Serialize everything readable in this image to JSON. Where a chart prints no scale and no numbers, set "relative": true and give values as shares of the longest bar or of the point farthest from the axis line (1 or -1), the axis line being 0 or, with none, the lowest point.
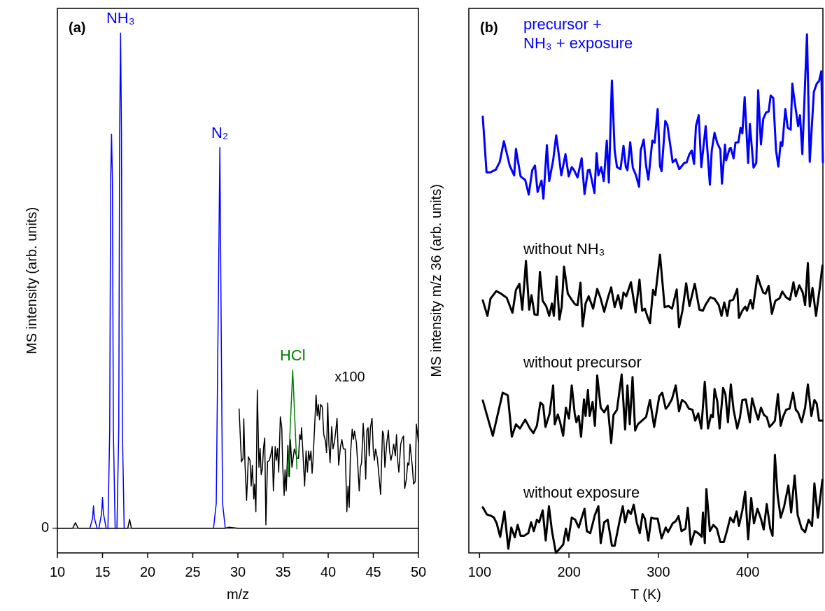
{
  "chart_data": [
    {
      "type": "line",
      "xlabel": "m/z",
      "ylabel": "MS intensity (arb. units)",
      "relative": true,
      "xlim": [
        10,
        50
      ],
      "xticks": [
        10,
        15,
        20,
        25,
        30,
        35,
        40,
        45,
        50
      ],
      "ref_lines": [
        {
          "axis": "y",
          "value": 0,
          "label": "0",
          "color": "#000000"
        }
      ],
      "annotations": [
        "(a)",
        "x100"
      ],
      "series": [
        {
          "color": "#000000",
          "x": [
            10,
            11.7,
            12,
            12.3,
            13.6,
            17.4,
            17.8,
            18,
            18.2,
            18.5,
            27.3,
            28.6,
            29,
            30,
            50
          ],
          "values": [
            0,
            0,
            0.011,
            0,
            0,
            0,
            0,
            0.018,
            0,
            0,
            0,
            0,
            0.002,
            0,
            0
          ]
        },
        {
          "name": "NH₃",
          "color": "#0000ff",
          "x": [
            13.6,
            13.9,
            14,
            14.1,
            14.4,
            14.6,
            14.9,
            15,
            15.1,
            15.4,
            15.6,
            15.8,
            15.9,
            16,
            16.1,
            16.2,
            16.4,
            16.6,
            16.8,
            16.9,
            17,
            17.1,
            17.2,
            17.4
          ],
          "values": [
            0,
            0.02,
            0.045,
            0.02,
            0,
            0,
            0.03,
            0.062,
            0.03,
            0,
            0,
            0.2,
            0.7,
            0.796,
            0.7,
            0.2,
            0,
            0,
            0.2,
            0.8,
            1,
            0.8,
            0.2,
            0
          ]
        },
        {
          "name": "N₂",
          "color": "#0000ff",
          "x": [
            27.3,
            27.6,
            27.8,
            28,
            28.15,
            28.3,
            28.6
          ],
          "values": [
            0,
            0.05,
            0.4,
            0.769,
            0.4,
            0.05,
            0
          ]
        },
        {
          "color": "#000000",
          "x": [
            30.13,
            30.39,
            30.57,
            30.65,
            30.78,
            30.96,
            31.16,
            31.34,
            31.47,
            31.6,
            31.76,
            31.86,
            31.99,
            32.15,
            32.33,
            32.46,
            32.58,
            32.71,
            32.84,
            32.97,
            33.1,
            33.28,
            33.49,
            33.67,
            33.8,
            33.93,
            34.13,
            34.26,
            34.39,
            34.52,
            34.7,
            34.86,
            34.96,
            35.12,
            35.22,
            35.35,
            35.53,
            35.69,
            35.81,
            35.99,
            36.25,
            36.59,
            36.72,
            36.85,
            36.98,
            37.05,
            37.18,
            37.39,
            37.55,
            37.7,
            37.83,
            37.96,
            38.09,
            38.22,
            38.32,
            38.53,
            38.66,
            38.79,
            38.91,
            39.04,
            39.17,
            39.35,
            39.51,
            39.69,
            39.82,
            39.95,
            40.08,
            40.21,
            40.39,
            40.54,
            40.72,
            40.85,
            40.98,
            41.16,
            41.37,
            41.52,
            41.68,
            41.89,
            42.07,
            42.2,
            42.33,
            42.46,
            42.66,
            42.79,
            42.92,
            43.13,
            43.31,
            43.44,
            43.57,
            43.7,
            43.88,
            44.01,
            44.16,
            44.29,
            44.42,
            44.55,
            44.68,
            44.86,
            44.99,
            45.12,
            45.25,
            45.45,
            45.68,
            45.81,
            46.02,
            46.15,
            46.28,
            46.49,
            46.67,
            46.8,
            46.95,
            47.11,
            47.26,
            47.44,
            47.57,
            47.7,
            47.83,
            48.04,
            48.22,
            48.35,
            48.48,
            48.66,
            48.81,
            48.94,
            49.07,
            49.2,
            49.33,
            49.46,
            49.64,
            49.77,
            49.9,
            50
          ],
          "values": [
            0.241,
            0.134,
            0.141,
            0.221,
            0.132,
            0.056,
            0.144,
            0.137,
            0.085,
            0.127,
            0.059,
            0.089,
            0.033,
            0.279,
            0.123,
            0.161,
            0.108,
            0.12,
            0.163,
            0.182,
            0.007,
            0.134,
            0.137,
            0.151,
            0.165,
            0.075,
            0.165,
            0.137,
            0.161,
            0.113,
            0.225,
            0.203,
            0.127,
            0.066,
            0.118,
            0.075,
            0.167,
            0.104,
            0.179,
            0.123,
            0.16,
            0.141,
            0.141,
            0.189,
            0.179,
            0.203,
            0.16,
            0.085,
            0.156,
            0.113,
            0.156,
            0.137,
            0.156,
            0.111,
            0.137,
            0.217,
            0.269,
            0.227,
            0.25,
            0.219,
            0.25,
            0.245,
            0.189,
            0.177,
            0.153,
            0.253,
            0.17,
            0.132,
            0.205,
            0.16,
            0.177,
            0.198,
            0.222,
            0.127,
            0.165,
            0.179,
            0.16,
            0.16,
            0.033,
            0.085,
            0.042,
            0.146,
            0.2,
            0.179,
            0.196,
            0.172,
            0.118,
            0.075,
            0.123,
            0.132,
            0.212,
            0.17,
            0.099,
            0.198,
            0.203,
            0.146,
            0.203,
            0.222,
            0.16,
            0.137,
            0.16,
            0.141,
            0.094,
            0.068,
            0.196,
            0.189,
            0.123,
            0.172,
            0.198,
            0.156,
            0.137,
            0.151,
            0.17,
            0.146,
            0.189,
            0.137,
            0.113,
            0.17,
            0.182,
            0.186,
            0.08,
            0.099,
            0.132,
            0.127,
            0.17,
            0.146,
            0.123,
            0.089,
            0.094,
            0.21,
            0.189,
            0.174
          ]
        },
        {
          "name": "HCl",
          "color": "#008000",
          "x": [
            35.56,
            36.07,
            36.54
          ],
          "values": [
            0.104,
            0.319,
            0.12
          ]
        }
      ]
    },
    {
      "type": "line",
      "xlabel": "T (K)",
      "ylabel": "MS intensity m/z 36 (arb. units)",
      "relative": true,
      "xlim": [
        88,
        484
      ],
      "xticks": [
        100,
        200,
        300,
        400
      ],
      "annotations": [
        "(b)"
      ],
      "series": [
        {
          "name": "precursor + NH₃ + exposure",
          "color": "#0000ff",
          "x": [
            103.6,
            107.8,
            112.2,
            118.1,
            122.6,
            127.2,
            130.4,
            133.7,
            138.7,
            140.7,
            143.3,
            145.9,
            151.1,
            155,
            158.9,
            162,
            164.9,
            169.3,
            171.4,
            175.3,
            177.9,
            182.3,
            185.7,
            188.8,
            191.4,
            196.1,
            199.7,
            203.1,
            205.7,
            209.6,
            214.2,
            217.4,
            221.2,
            223.1,
            228.5,
            230.9,
            232.9,
            236.1,
            238.9,
            242.3,
            244.6,
            248,
            251.1,
            253.7,
            257.6,
            261,
            263.6,
            265.4,
            268.5,
            271.4,
            275,
            278.4,
            280.2,
            283.6,
            286.2,
            288.8,
            293.2,
            295.8,
            299.2,
            301.8,
            303.6,
            307.7,
            310.1,
            316,
            319.4,
            323.3,
            329,
            331.6,
            334.7,
            337.3,
            339.9,
            342,
            345.1,
            348,
            352.9,
            357.6,
            359.7,
            362.8,
            365.9,
            369.3,
            371.1,
            374.5,
            375.8,
            379.7,
            381,
            384.1,
            386.2,
            389.5,
            391.9,
            393.9,
            396.5,
            400.4,
            402.3,
            406.4,
            409.5,
            411.6,
            414.7,
            417.3,
            420.4,
            423.3,
            425.6,
            428.5,
            431.6,
            434.2,
            436.8,
            438.6,
            442,
            444.6,
            448,
            449.8,
            452.4,
            456.3,
            458.4,
            461,
            466.2,
            469.3,
            473.9,
            477.1,
            479.7,
            482.3,
            484
          ],
          "values": [
            0.841,
            0.734,
            0.734,
            0.739,
            0.754,
            0.794,
            0.771,
            0.747,
            0.728,
            0.779,
            0.752,
            0.726,
            0.719,
            0.691,
            0.738,
            0.747,
            0.696,
            0.718,
            0.683,
            0.786,
            0.717,
            0.757,
            0.805,
            0.766,
            0.728,
            0.769,
            0.726,
            0.744,
            0.738,
            0.724,
            0.761,
            0.692,
            0.738,
            0.739,
            0.694,
            0.771,
            0.728,
            0.744,
            0.717,
            0.795,
            0.714,
            0.911,
            0.776,
            0.744,
            0.74,
            0.785,
            0.744,
            0.738,
            0.792,
            0.743,
            0.728,
            0.706,
            0.776,
            0.797,
            0.747,
            0.72,
            0.795,
            0.791,
            0.856,
            0.746,
            0.736,
            0.833,
            0.825,
            0.753,
            0.759,
            0.74,
            0.752,
            0.753,
            0.769,
            0.776,
            0.75,
            0.823,
            0.844,
            0.744,
            0.823,
            0.71,
            0.776,
            0.81,
            0.79,
            0.778,
            0.712,
            0.787,
            0.757,
            0.78,
            0.781,
            0.761,
            0.791,
            0.792,
            0.82,
            0.809,
            0.879,
            0.752,
            0.827,
            0.743,
            0.752,
            0.892,
            0.788,
            0.837,
            0.849,
            0.851,
            0.882,
            0.877,
            0.776,
            0.745,
            0.792,
            0.785,
            0.856,
            0.82,
            0.816,
            0.905,
            0.87,
            0.823,
            0.844,
            0.769,
            1,
            0.754,
            0.889,
            0.905,
            0.91,
            0.929,
            0.753
          ]
        },
        {
          "name": "without NH₃",
          "color": "#000000",
          "x": [
            103.6,
            108.8,
            112.2,
            118.7,
            123.9,
            130.4,
            136.8,
            140.7,
            144.6,
            147.8,
            151.9,
            155.5,
            158.1,
            161.5,
            164.9,
            167.5,
            170.6,
            174.5,
            177.9,
            181,
            183.1,
            186.2,
            189.3,
            191.9,
            194.5,
            198.7,
            203.1,
            207,
            209.6,
            212.9,
            215.3,
            218.6,
            222,
            227,
            231.6,
            235,
            239.4,
            244.1,
            247.2,
            251.1,
            255,
            258.4,
            261,
            264.1,
            269.3,
            274.5,
            278.9,
            281.8,
            284.9,
            287.5,
            290.6,
            294,
            296.6,
            301.8,
            307,
            311.4,
            315.3,
            320.5,
            323.1,
            327,
            331.1,
            334.7,
            340.7,
            345.9,
            349.8,
            352.9,
            358.1,
            362.8,
            367.5,
            370.6,
            373.7,
            377.1,
            379.7,
            383.6,
            388.2,
            390.1,
            393.9,
            397.1,
            399.1,
            403,
            405.6,
            410.8,
            414.2,
            417.3,
            419.9,
            423.3,
            426.9,
            430.8,
            435.5,
            438.6,
            442.8,
            447.2,
            451.1,
            453.7,
            457.6,
            461.5,
            464.1,
            467.2,
            469.3,
            472.4,
            476.3,
            480.2,
            483.5
          ],
          "values": [
            0.487,
            0.457,
            0.49,
            0.505,
            0.5,
            0.492,
            0.463,
            0.507,
            0.519,
            0.469,
            0.563,
            0.469,
            0.497,
            0.46,
            0.459,
            0.542,
            0.486,
            0.476,
            0.457,
            0.481,
            0.457,
            0.533,
            0.45,
            0.475,
            0.552,
            0.5,
            0.488,
            0.479,
            0.478,
            0.521,
            0.437,
            0.481,
            0.495,
            0.471,
            0.509,
            0.493,
            0.465,
            0.495,
            0.512,
            0.474,
            0.497,
            0.471,
            0.502,
            0.495,
            0.522,
            0.464,
            0.527,
            0.467,
            0.471,
            0.457,
            0.443,
            0.507,
            0.497,
            0.575,
            0.474,
            0.476,
            0.471,
            0.508,
            0.435,
            0.468,
            0.52,
            0.476,
            0.519,
            0.469,
            0.467,
            0.479,
            0.493,
            0.49,
            0.478,
            0.457,
            0.483,
            0.457,
            0.486,
            0.488,
            0.509,
            0.453,
            0.467,
            0.475,
            0.467,
            0.488,
            0.471,
            0.534,
            0.516,
            0.502,
            0.5,
            0.515,
            0.461,
            0.486,
            0.491,
            0.504,
            0.493,
            0.488,
            0.522,
            0.495,
            0.516,
            0.502,
            0.478,
            0.559,
            0.475,
            0.511,
            0.457,
            0.507,
            0.554
          ]
        },
        {
          "name": "without precursor",
          "color": "#000000",
          "x": [
            103.6,
            114.8,
            125.9,
            131.6,
            136.1,
            140.7,
            145.2,
            151.1,
            156.3,
            160.2,
            164.1,
            168,
            171.1,
            173.7,
            178.4,
            182.3,
            184.1,
            187.5,
            190.1,
            193.5,
            196.6,
            200,
            203.1,
            206.4,
            208.3,
            210.9,
            213.5,
            216.8,
            218.6,
            221.2,
            223.1,
            226.4,
            229,
            231.6,
            235.5,
            239.4,
            243.3,
            247.2,
            249.8,
            253.7,
            258.9,
            262.8,
            265.4,
            268,
            271.1,
            274,
            277.1,
            286.2,
            290.6,
            295.3,
            301,
            304.3,
            308.2,
            310.8,
            315.3,
            319.4,
            323.1,
            326.4,
            330.3,
            334.2,
            338.1,
            341.2,
            344.6,
            348,
            351.9,
            355.5,
            358.9,
            361,
            362.8,
            365.9,
            368.5,
            372.4,
            375,
            377.8,
            381,
            384.1,
            388.2,
            391.3,
            393.9,
            397.8,
            402.3,
            404.8,
            408.2,
            411.6,
            414.7,
            418.1,
            421.2,
            424.3,
            427.2,
            430.3,
            433.7,
            436.8,
            439.4,
            442.8,
            446.7,
            450.6,
            453.7,
            456.3,
            460.2,
            464.1,
            467.2,
            471.1,
            474.5,
            477.1,
            479.7,
            483.5
          ],
          "values": [
            0.294,
            0.226,
            0.309,
            0.304,
            0.224,
            0.248,
            0.24,
            0.257,
            0.24,
            0.231,
            0.245,
            0.29,
            0.285,
            0.243,
            0.269,
            0.323,
            0.248,
            0.267,
            0.252,
            0.226,
            0.28,
            0.259,
            0.323,
            0.269,
            0.252,
            0.264,
            0.224,
            0.296,
            0.264,
            0.314,
            0.264,
            0.291,
            0.245,
            0.342,
            0.28,
            0.271,
            0.284,
            0.212,
            0.266,
            0.276,
            0.344,
            0.238,
            0.323,
            0.248,
            0.339,
            0.236,
            0.248,
            0.262,
            0.295,
            0.243,
            0.302,
            0.309,
            0.278,
            0.283,
            0.297,
            0.323,
            0.273,
            0.295,
            0.29,
            0.278,
            0.276,
            0.255,
            0.269,
            0.24,
            0.33,
            0.24,
            0.266,
            0.262,
            0.316,
            0.292,
            0.24,
            0.318,
            0.306,
            0.252,
            0.325,
            0.276,
            0.24,
            0.262,
            0.295,
            0.296,
            0.252,
            0.298,
            0.276,
            0.257,
            0.28,
            0.266,
            0.262,
            0.243,
            0.248,
            0.255,
            0.306,
            0.245,
            0.262,
            0.276,
            0.278,
            0.309,
            0.276,
            0.271,
            0.252,
            0.28,
            0.325,
            0.264,
            0.295,
            0.288,
            0.255,
            0.255
          ]
        },
        {
          "name": "without exposure",
          "color": "#000000",
          "x": [
            103.6,
            108.3,
            113.5,
            116.1,
            119.2,
            123.1,
            127.8,
            132.2,
            135.5,
            139.4,
            142.6,
            145.9,
            149.8,
            154.5,
            157.6,
            160.7,
            164.1,
            166.7,
            170.6,
            174,
            177.6,
            181,
            185.4,
            190.1,
            193.5,
            196.6,
            199.2,
            203.1,
            207,
            210.9,
            214.8,
            217.4,
            220,
            223.8,
            229,
            232.9,
            235.5,
            239.4,
            243.3,
            248,
            251.1,
            256.3,
            260.2,
            262.8,
            266.2,
            269.3,
            272.4,
            275.8,
            279.2,
            282.3,
            284.9,
            288.8,
            292.1,
            295.3,
            299.2,
            303.6,
            308.2,
            310.8,
            316,
            319.4,
            322.5,
            325.9,
            330.3,
            332.9,
            336.3,
            340.7,
            344.6,
            348.5,
            349.8,
            351.9,
            353.7,
            357.6,
            361.5,
            365.4,
            369.3,
            373.2,
            377.1,
            380.4,
            384.1,
            387.5,
            390.1,
            393.9,
            397.1,
            400.4,
            403.8,
            406.9,
            410.8,
            414.7,
            417.8,
            421.2,
            425.1,
            427.7,
            430.3,
            433.4,
            436.8,
            440.7,
            445.4,
            448.5,
            452.4,
            455.8,
            460.2,
            464.1,
            468,
            471.9,
            474.5,
            478.4,
            481,
            483.5
          ],
          "values": [
            0.088,
            0.074,
            0.071,
            0.068,
            0.057,
            0.031,
            0.08,
            0.008,
            0.049,
            0.03,
            0.054,
            0.033,
            0.033,
            0.038,
            0.059,
            0.042,
            0.064,
            0.059,
            0.082,
            0.024,
            0.09,
            0.042,
            0,
            0.009,
            0.016,
            0.047,
            0.024,
            0.068,
            0.064,
            0.049,
            0.071,
            0.085,
            0.042,
            0.038,
            0.073,
            0.09,
            0.019,
            0.059,
            0.064,
            0.014,
            0.014,
            0.059,
            0.09,
            0.059,
            0.082,
            0.075,
            0.093,
            0.059,
            0.038,
            0.075,
            0.066,
            0.024,
            0.068,
            0.066,
            0.066,
            0.028,
            0.049,
            0.04,
            0.057,
            0.061,
            0.071,
            0.042,
            0.047,
            0.087,
            0.016,
            0.042,
            0.038,
            0.031,
            0.078,
            0.019,
            0.123,
            0.042,
            0.054,
            0.047,
            0.021,
            0.021,
            0.045,
            0.068,
            0.059,
            0.08,
            0.052,
            0.082,
            0.118,
            0.026,
            0.106,
            0.057,
            0.085,
            0.066,
            0.045,
            0.094,
            0.047,
            0.033,
            0.189,
            0.111,
            0.068,
            0.09,
            0.13,
            0.078,
            0.149,
            0.073,
            0.047,
            0.04,
            0.064,
            0.052,
            0.134,
            0.068,
            0.106,
            0.141
          ]
        }
      ]
    }
  ]
}
